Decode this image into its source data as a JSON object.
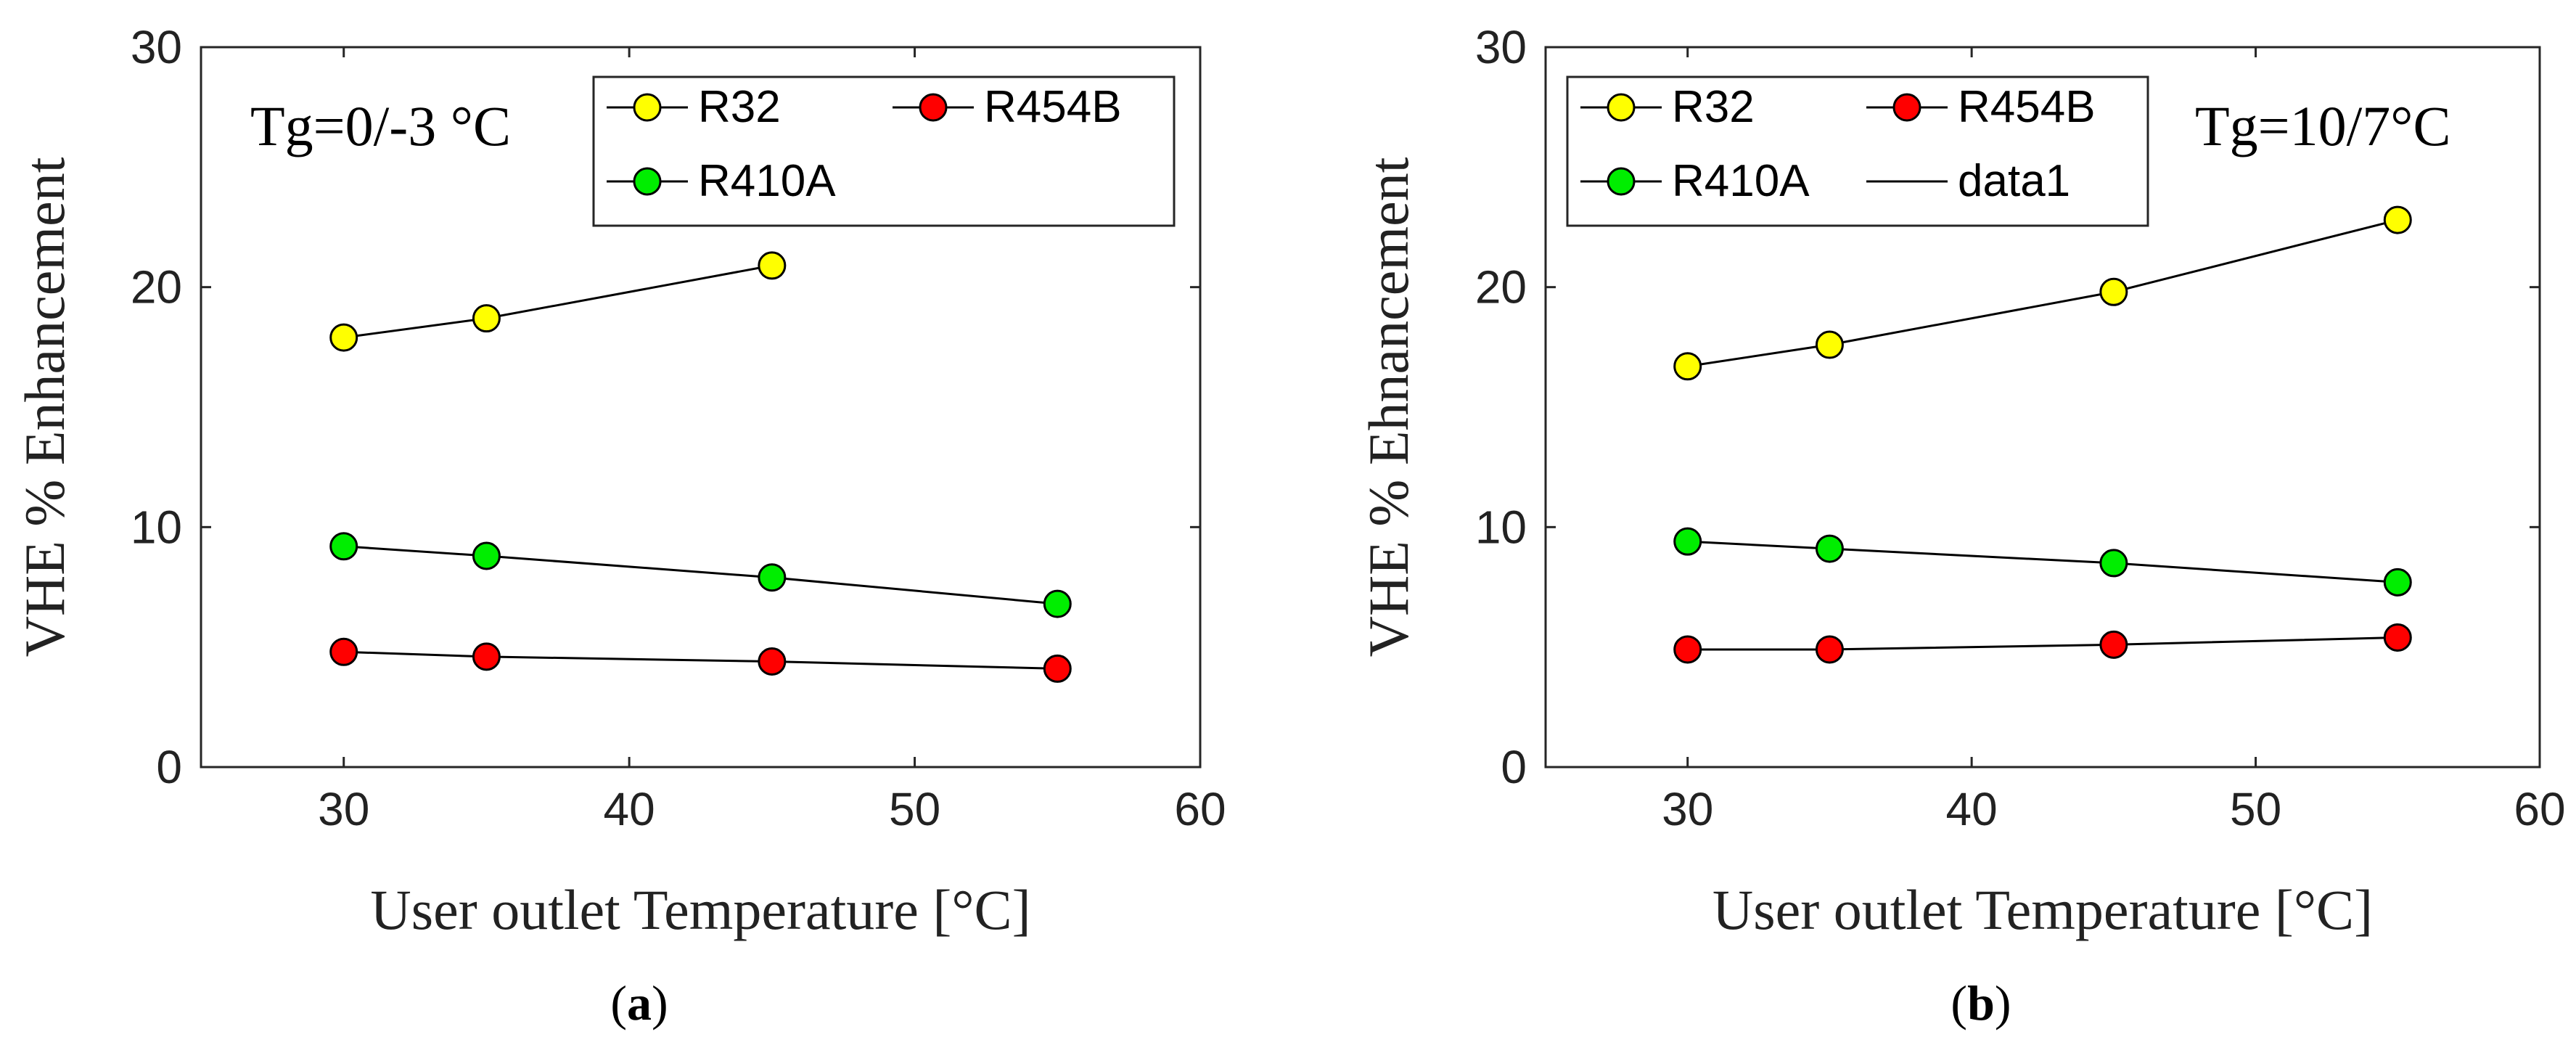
{
  "chart_data": [
    {
      "type": "line",
      "caption_letter": "a",
      "annotation": "Tg=0/-3 °C",
      "xlabel": "User outlet Temperature [°C]",
      "ylabel": "VHE % Enhancement",
      "xlim": [
        25,
        60
      ],
      "ylim": [
        0,
        30
      ],
      "xticks": [
        30,
        40,
        50,
        60
      ],
      "yticks": [
        0,
        10,
        20,
        30
      ],
      "legend_position": "top-right",
      "series": [
        {
          "name": "R32",
          "color": "#ffff00",
          "x": [
            30,
            35,
            45
          ],
          "y": [
            17.9,
            18.7,
            20.9
          ]
        },
        {
          "name": "R454B",
          "color": "#ff0000",
          "x": [
            30,
            35,
            45,
            55
          ],
          "y": [
            4.8,
            4.6,
            4.4,
            4.1
          ]
        },
        {
          "name": "R410A",
          "color": "#00ee00",
          "x": [
            30,
            35,
            45,
            55
          ],
          "y": [
            9.2,
            8.8,
            7.9,
            6.8
          ]
        }
      ]
    },
    {
      "type": "line",
      "caption_letter": "b",
      "annotation": "Tg=10/7°C",
      "xlabel": "User outlet Temperature [°C]",
      "ylabel": "VHE % Ehnancement",
      "xlim": [
        25,
        60
      ],
      "ylim": [
        0,
        30
      ],
      "xticks": [
        30,
        40,
        50,
        60
      ],
      "yticks": [
        0,
        10,
        20,
        30
      ],
      "legend_position": "top-left",
      "series": [
        {
          "name": "R32",
          "color": "#ffff00",
          "x": [
            30,
            35,
            45,
            55
          ],
          "y": [
            16.7,
            17.6,
            19.8,
            22.8
          ]
        },
        {
          "name": "R454B",
          "color": "#ff0000",
          "x": [
            30,
            35,
            45,
            55
          ],
          "y": [
            4.9,
            4.9,
            5.1,
            5.4
          ]
        },
        {
          "name": "R410A",
          "color": "#00ee00",
          "x": [
            30,
            35,
            45,
            55
          ],
          "y": [
            9.4,
            9.1,
            8.5,
            7.7
          ]
        },
        {
          "name": "data1",
          "color": "#000000",
          "x": [],
          "y": []
        }
      ]
    }
  ]
}
